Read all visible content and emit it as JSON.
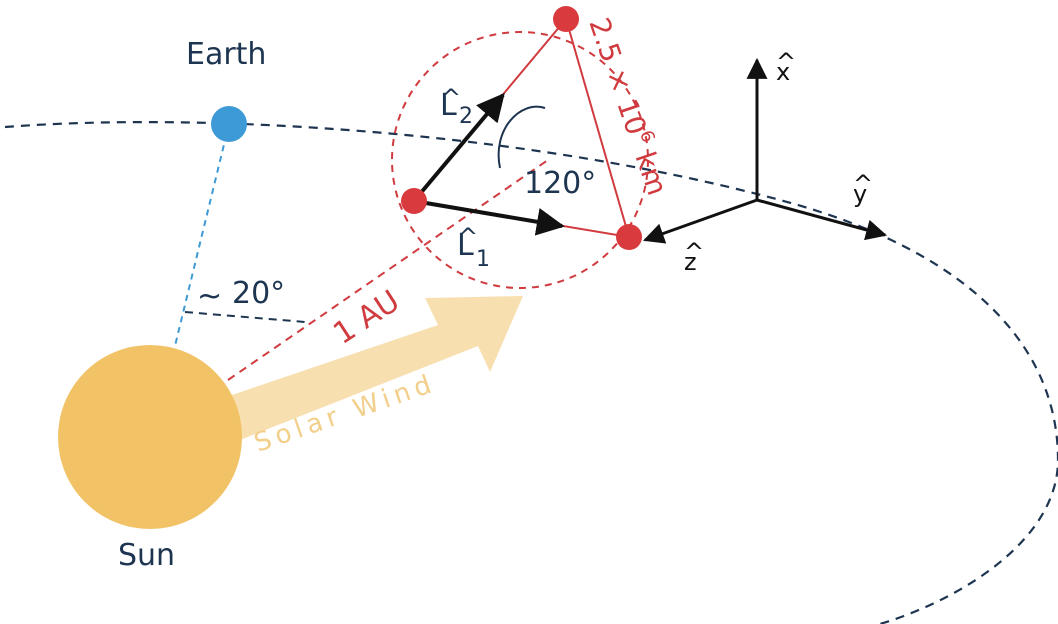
{
  "labels": {
    "earth": "Earth",
    "sun": "Sun",
    "angle_earth_sun": "20°",
    "approx_symbol": "~",
    "distance_au": "1 AU",
    "arm_length": "2.5 × 10",
    "arm_length_exp": "6",
    "arm_length_unit": "km",
    "triangle_angle": "120°",
    "solar_wind": "Solar Wind",
    "vec_l1": "L",
    "vec_l1_sub": "1",
    "vec_l2": "L",
    "vec_l2_sub": "2",
    "hat": "^",
    "axis_x": "x",
    "axis_y": "y",
    "axis_z": "z"
  },
  "colors": {
    "sun": "#f2c266",
    "earth": "#3d9ad6",
    "spacecraft": "#d93a3e",
    "orbit": "#1d3550",
    "solar_wind": "#f8dfb0",
    "text_dark": "#1d3550",
    "text_red": "#d03b3f"
  }
}
